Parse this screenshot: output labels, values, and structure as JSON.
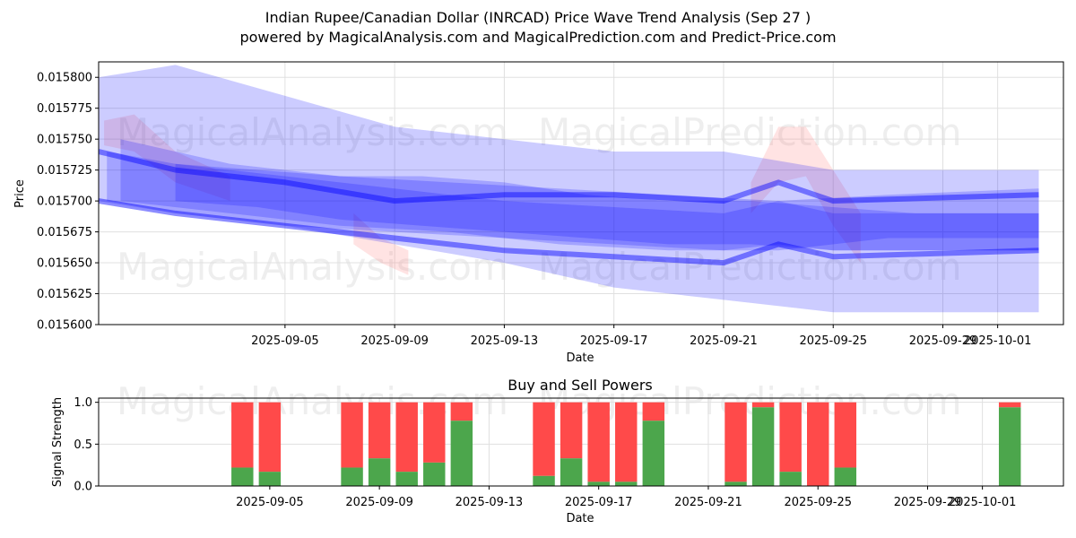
{
  "title_line1": "Indian Rupee/Canadian Dollar (INRCAD) Price Wave Trend Analysis (Sep 27 )",
  "title_line2": "powered by MagicalAnalysis.com and MagicalPrediction.com and Predict-Price.com",
  "watermarks": [
    "MagicalAnalysis.com",
    "MagicalPrediction.com"
  ],
  "colors": {
    "band": "#0000ff",
    "band_warm": "#ff8080",
    "buy": "#4ca64c",
    "sell": "#ff4a4a",
    "grid": "#e0e0e0"
  },
  "chart_data": [
    {
      "type": "area",
      "title": "",
      "xlabel": "Date",
      "ylabel": "Price",
      "ylim": [
        0.0156,
        0.0158125
      ],
      "xlim_days": [
        -2.8,
        32.4
      ],
      "x_ticks": [
        "2025-09-05",
        "2025-09-09",
        "2025-09-13",
        "2025-09-17",
        "2025-09-21",
        "2025-09-25",
        "2025-09-29",
        "2025-10-01"
      ],
      "x_tick_days": [
        4,
        8,
        12,
        16,
        20,
        24,
        28,
        30
      ],
      "y_ticks": [
        "0.015600",
        "0.015625",
        "0.015650",
        "0.015675",
        "0.015700",
        "0.015725",
        "0.015750",
        "0.015775",
        "0.015800"
      ],
      "y_tick_values": [
        0.0156,
        0.015625,
        0.01565,
        0.015675,
        0.0157,
        0.015725,
        0.01575,
        0.015775,
        0.0158
      ],
      "bands": [
        {
          "x": [
            -2.8,
            0,
            4,
            8,
            12,
            16,
            20,
            24,
            31.5
          ],
          "upper": [
            0.0158,
            0.01581,
            0.015785,
            0.01576,
            0.01575,
            0.01574,
            0.01574,
            0.015725,
            0.015725
          ],
          "lower": [
            0.0157,
            0.01569,
            0.01568,
            0.015665,
            0.01565,
            0.01563,
            0.01562,
            0.01561,
            0.01561
          ]
        },
        {
          "x": [
            -2.5,
            0,
            4,
            8,
            12,
            16,
            20,
            22,
            24,
            31.5
          ],
          "upper": [
            0.01574,
            0.01573,
            0.01572,
            0.01571,
            0.0157,
            0.015695,
            0.01569,
            0.0157,
            0.01569,
            0.01569
          ],
          "lower": [
            0.0157,
            0.01569,
            0.01568,
            0.015675,
            0.01567,
            0.015665,
            0.01566,
            0.015665,
            0.01566,
            0.01566
          ]
        },
        {
          "x": [
            -2,
            2,
            6,
            10,
            14,
            18,
            22,
            26,
            31.5
          ],
          "upper": [
            0.01575,
            0.01573,
            0.01572,
            0.015715,
            0.01571,
            0.015705,
            0.0157,
            0.015705,
            0.01571
          ],
          "lower": [
            0.0157,
            0.01569,
            0.01568,
            0.015675,
            0.015665,
            0.01566,
            0.01566,
            0.01567,
            0.01567
          ]
        },
        {
          "x": [
            0,
            3,
            6,
            9,
            12,
            15,
            18,
            21,
            24,
            27,
            31.5
          ],
          "upper": [
            0.01573,
            0.015725,
            0.01572,
            0.01572,
            0.015715,
            0.015705,
            0.0157,
            0.0157,
            0.015695,
            0.01569,
            0.01569
          ],
          "lower": [
            0.0157,
            0.015695,
            0.015685,
            0.01568,
            0.015675,
            0.01567,
            0.015665,
            0.015665,
            0.01566,
            0.01566,
            0.01566
          ]
        }
      ],
      "warm_bands": [
        {
          "x": [
            -2.6,
            -1.5,
            0,
            2
          ],
          "upper": [
            0.015765,
            0.01577,
            0.01574,
            0.01572
          ],
          "lower": [
            0.015745,
            0.01574,
            0.015715,
            0.0157
          ]
        },
        {
          "x": [
            21,
            22,
            23,
            24,
            25
          ],
          "upper": [
            0.015715,
            0.01576,
            0.01576,
            0.015725,
            0.01569
          ],
          "lower": [
            0.01569,
            0.015715,
            0.01572,
            0.01568,
            0.01565
          ]
        },
        {
          "x": [
            6.5,
            7.5,
            8.5
          ],
          "upper": [
            0.01569,
            0.01567,
            0.01566
          ],
          "lower": [
            0.015665,
            0.01565,
            0.01564
          ]
        }
      ],
      "center_lines": [
        {
          "x": [
            -2.8,
            0,
            4,
            8,
            12,
            16,
            20,
            22,
            24,
            31.5
          ],
          "y": [
            0.0157,
            0.01569,
            0.01568,
            0.01567,
            0.01566,
            0.015655,
            0.01565,
            0.015665,
            0.015655,
            0.01566
          ]
        },
        {
          "x": [
            -2.8,
            0,
            4,
            8,
            12,
            16,
            20,
            22,
            24,
            31.5
          ],
          "y": [
            0.01574,
            0.015725,
            0.015715,
            0.0157,
            0.015705,
            0.015705,
            0.0157,
            0.015715,
            0.0157,
            0.015705
          ]
        }
      ]
    },
    {
      "type": "bar",
      "title": "Buy and Sell Powers",
      "xlabel": "Date",
      "ylabel": "Signal Strength",
      "ylim": [
        0,
        1.05
      ],
      "y_ticks": [
        "0.0",
        "0.5",
        "1.0"
      ],
      "y_tick_values": [
        0,
        0.5,
        1.0
      ],
      "x_ticks": [
        "2025-09-05",
        "2025-09-09",
        "2025-09-13",
        "2025-09-17",
        "2025-09-21",
        "2025-09-25",
        "2025-09-29",
        "2025-10-01"
      ],
      "x_tick_days": [
        4,
        8,
        12,
        16,
        20,
        24,
        28,
        30
      ],
      "bars": [
        {
          "day": 3,
          "buy": 0.22
        },
        {
          "day": 4,
          "buy": 0.17
        },
        {
          "day": 7,
          "buy": 0.22
        },
        {
          "day": 8,
          "buy": 0.33
        },
        {
          "day": 9,
          "buy": 0.17
        },
        {
          "day": 10,
          "buy": 0.28
        },
        {
          "day": 11,
          "buy": 0.78
        },
        {
          "day": 14,
          "buy": 0.12
        },
        {
          "day": 15,
          "buy": 0.33
        },
        {
          "day": 16,
          "buy": 0.05
        },
        {
          "day": 17,
          "buy": 0.05
        },
        {
          "day": 18,
          "buy": 0.78
        },
        {
          "day": 21,
          "buy": 0.05
        },
        {
          "day": 22,
          "buy": 0.94
        },
        {
          "day": 23,
          "buy": 0.17
        },
        {
          "day": 24,
          "buy": 0.0
        },
        {
          "day": 25,
          "buy": 0.22
        },
        {
          "day": 31,
          "buy": 0.94
        }
      ]
    }
  ]
}
